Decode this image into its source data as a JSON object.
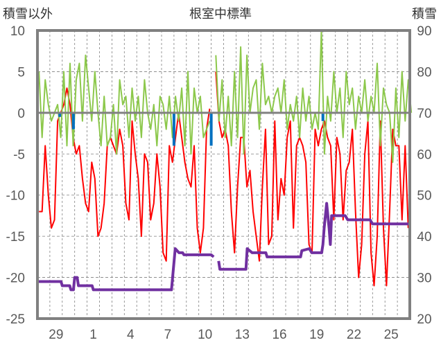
{
  "chart_data": {
    "type": "line",
    "title": "根室中標準",
    "left_axis_label": "積雪以外",
    "right_axis_label": "積雪",
    "ylim_left": [
      -25,
      10
    ],
    "ylim_right": [
      20,
      90
    ],
    "yticks_left": [
      "10",
      "5",
      "0",
      "-5",
      "-10",
      "-15",
      "-20",
      "-25"
    ],
    "yticks_right": [
      "90",
      "80",
      "70",
      "60",
      "50",
      "40",
      "30",
      "20"
    ],
    "xlim_days": [
      0,
      30
    ],
    "xticks": [
      {
        "day": 1.5,
        "label": "29"
      },
      {
        "day": 4.5,
        "label": "1"
      },
      {
        "day": 7.5,
        "label": "4"
      },
      {
        "day": 10.5,
        "label": "7"
      },
      {
        "day": 13.5,
        "label": "10"
      },
      {
        "day": 16.5,
        "label": "13"
      },
      {
        "day": 19.5,
        "label": "16"
      },
      {
        "day": 22.5,
        "label": "19"
      },
      {
        "day": 25.5,
        "label": "22"
      },
      {
        "day": 28.5,
        "label": "25"
      }
    ],
    "grid": true,
    "series": [
      {
        "name": "red",
        "axis": "left",
        "color": "#ff0000",
        "step": 0.25,
        "values": [
          -12,
          -12,
          -4,
          -10,
          -14,
          -13,
          -1,
          0,
          1,
          3,
          1,
          -3,
          -5,
          -4,
          -8,
          -11,
          -12,
          -6,
          -8,
          -15,
          -14,
          -11,
          -4,
          -3,
          -4,
          -5,
          -2,
          -4,
          -11,
          -13,
          -1,
          -5,
          -8,
          -15,
          -5,
          -6,
          -13,
          -11,
          -5,
          -9,
          -17,
          -18,
          -4,
          -6,
          -3,
          0,
          -3,
          -6,
          -8,
          -9,
          -4,
          -14,
          -17,
          -14,
          -2,
          0.5,
          null,
          5,
          -1,
          -3,
          -2,
          -4,
          -12,
          -17,
          -9,
          -3,
          -3,
          -9,
          -7,
          -12,
          -15,
          -18,
          -9,
          -2,
          -16,
          -15,
          -1,
          -13,
          -8,
          -10,
          -3,
          -1,
          -14,
          -4,
          -3,
          -4,
          -6,
          -16,
          -17,
          -2,
          -4,
          -2,
          -1,
          -3,
          -4,
          -13,
          -3,
          -5,
          -13,
          -7,
          -6,
          -2,
          -12,
          -20,
          -16,
          -5,
          -1,
          -17,
          -21,
          -15,
          -1,
          -14,
          -21,
          -12,
          -2,
          -4,
          -4,
          -13,
          -4,
          -14
        ]
      },
      {
        "name": "green",
        "axis": "left",
        "color": "#8cc84b",
        "step": 0.25,
        "values": [
          5,
          -3,
          4,
          1,
          -1,
          0,
          1,
          -3,
          5,
          -4,
          6,
          -4,
          4,
          6,
          -1,
          7,
          3,
          -1,
          5,
          0,
          -4,
          2,
          -4,
          -3,
          1,
          -5,
          4,
          1,
          2,
          -3,
          3,
          -1,
          2,
          -3,
          4,
          0,
          -2,
          1,
          -4,
          2,
          1,
          -2,
          2,
          -3,
          2,
          -1,
          3,
          -4,
          5,
          -5,
          3,
          0,
          2,
          -3,
          -2,
          -1,
          null,
          7,
          -1,
          4,
          -3,
          2,
          -4,
          5,
          -3,
          8,
          -5,
          7,
          0,
          3,
          4,
          -2,
          6,
          1,
          2,
          0,
          2,
          3,
          0,
          4,
          -2,
          1,
          -1,
          2,
          -3,
          3,
          -1,
          2,
          -2,
          0,
          -2,
          10,
          -5,
          2,
          -1,
          5,
          0,
          3,
          -3,
          5,
          1,
          3,
          -2,
          2,
          0,
          4,
          -1,
          2,
          0,
          6,
          -4,
          3,
          1,
          0,
          -6,
          3,
          -3,
          5,
          -1,
          4,
          0
        ]
      },
      {
        "name": "blue",
        "axis": "left",
        "color": "#0070c0",
        "points": [
          [
            1.8,
            0
          ],
          [
            1.8,
            -0.5
          ],
          null,
          [
            2.9,
            0
          ],
          [
            2.9,
            -2
          ],
          null,
          [
            11.0,
            0
          ],
          [
            11.0,
            -4
          ],
          null,
          [
            14.0,
            0
          ],
          [
            14.0,
            -4
          ],
          null,
          [
            23.0,
            0
          ],
          [
            23.0,
            -1
          ]
        ]
      },
      {
        "name": "purple",
        "axis": "right",
        "color": "#7030a0",
        "points": [
          [
            0,
            29
          ],
          [
            1.9,
            29
          ],
          [
            2,
            28
          ],
          [
            2.6,
            28
          ],
          [
            2.7,
            27
          ],
          [
            2.9,
            27
          ],
          [
            3,
            30
          ],
          [
            3.2,
            30
          ],
          [
            3.3,
            28
          ],
          [
            4.4,
            28
          ],
          [
            4.5,
            27
          ],
          [
            10.8,
            27
          ],
          [
            11.1,
            37
          ],
          [
            11.4,
            36
          ],
          [
            11.7,
            36
          ],
          [
            11.8,
            35.5
          ],
          [
            14,
            35.5
          ],
          [
            14.2,
            35
          ],
          null,
          [
            14.6,
            34
          ],
          [
            14.7,
            32
          ],
          [
            16.8,
            32
          ],
          [
            16.9,
            37
          ],
          [
            17.3,
            36
          ],
          [
            18.4,
            36
          ],
          [
            18.5,
            35
          ],
          [
            21.2,
            35
          ],
          [
            21.3,
            36.5
          ],
          [
            21.9,
            37
          ],
          [
            22.1,
            36
          ],
          [
            22.9,
            36
          ],
          [
            23,
            38
          ],
          [
            23.1,
            42
          ],
          [
            23.3,
            48
          ],
          [
            23.5,
            42
          ],
          [
            23.6,
            38
          ],
          [
            23.7,
            45
          ],
          [
            24.8,
            45
          ],
          [
            25,
            44
          ],
          [
            26.8,
            44
          ],
          [
            27,
            43
          ],
          [
            30,
            43
          ]
        ]
      }
    ]
  }
}
